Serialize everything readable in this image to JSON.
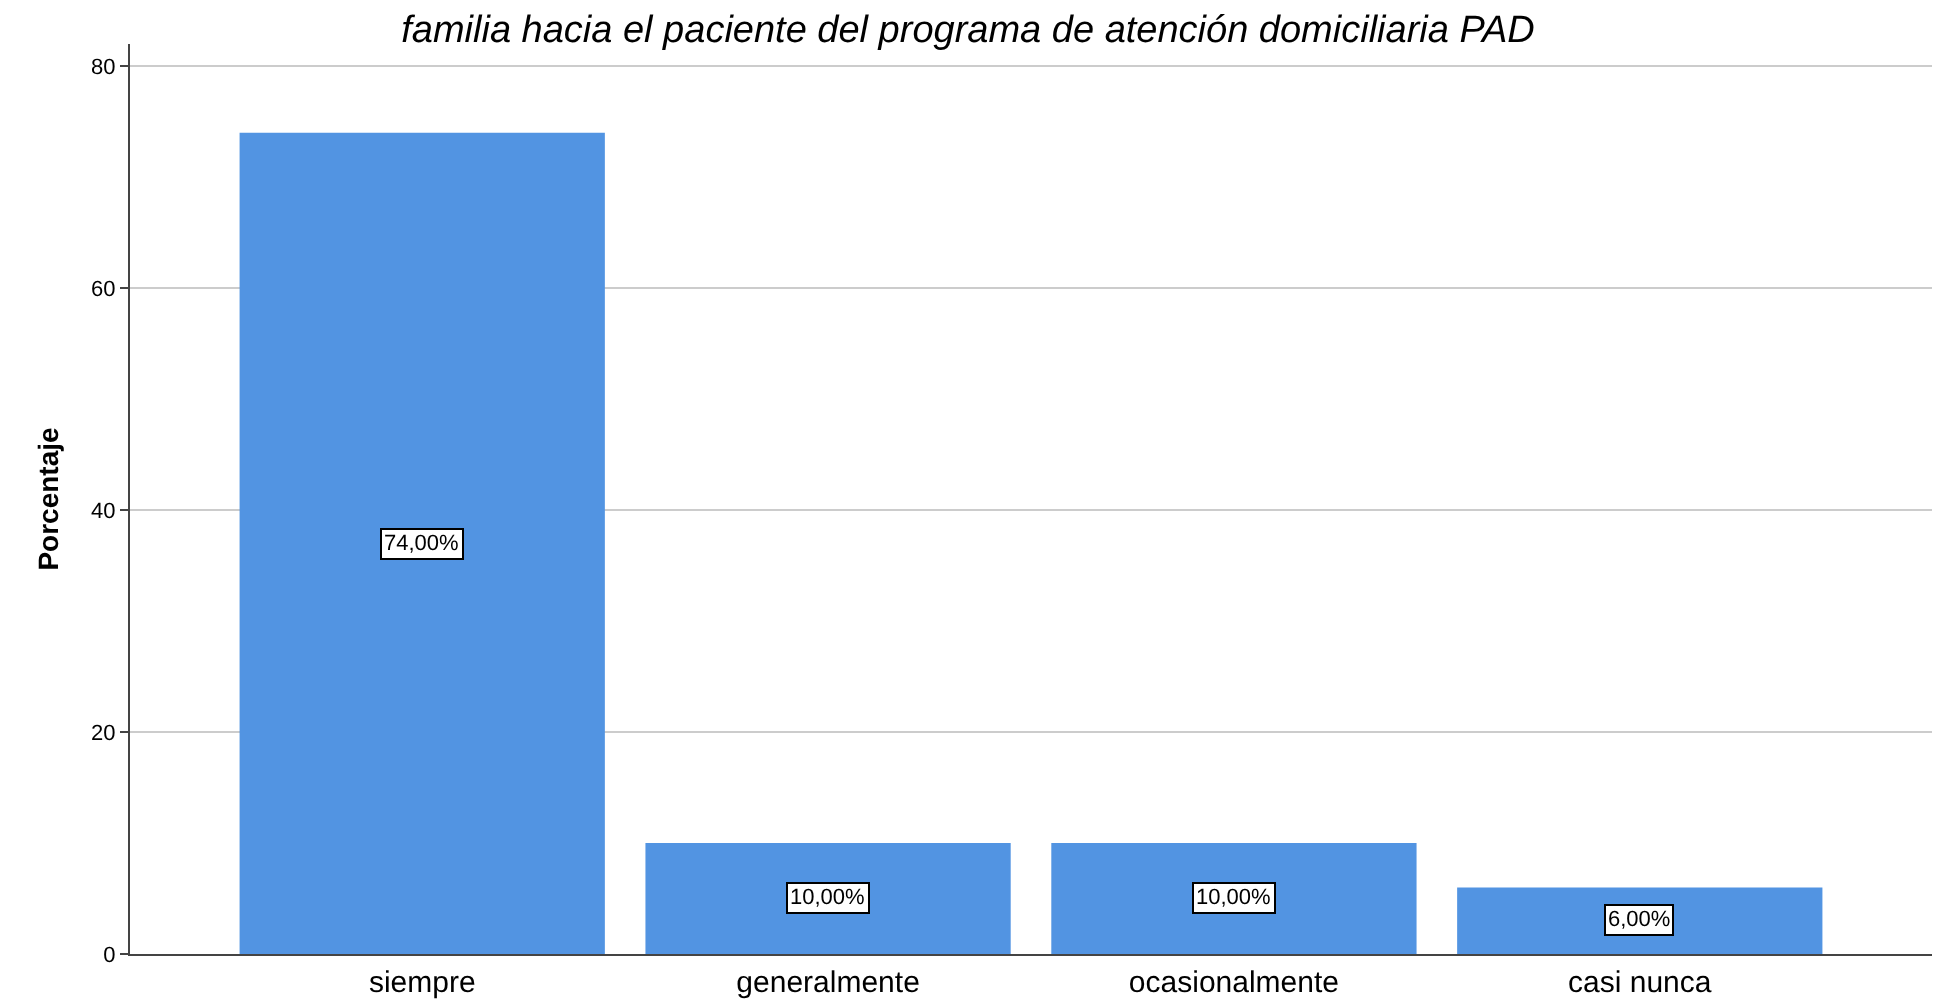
{
  "chart_data": {
    "type": "bar",
    "title": "familia hacia el paciente del programa de atención domiciliaria PAD",
    "ylabel": "Porcentaje",
    "categories": [
      "siempre",
      "generalmente",
      "ocasionalmente",
      "casi nunca"
    ],
    "values": [
      74,
      10,
      10,
      6
    ],
    "value_labels": [
      "74,00%",
      "10,00%",
      "10,00%",
      "6,00%"
    ],
    "color": "#5294e2",
    "ylim": [
      0,
      82
    ],
    "yticks": [
      0,
      20,
      40,
      60,
      80
    ],
    "grid": "y"
  }
}
